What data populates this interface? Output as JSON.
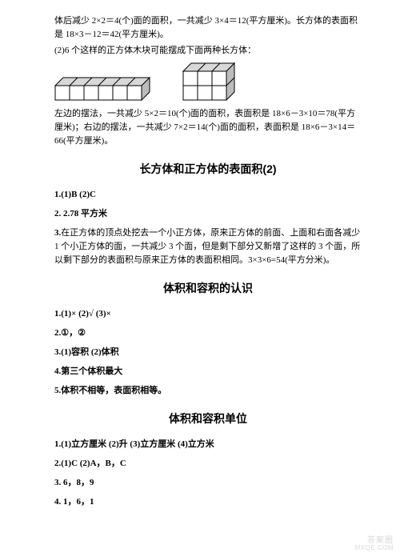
{
  "intro": {
    "p1": "体后减少 2×2＝4(个)面的面积，一共减少 3×4＝12(平方厘米)。长方体的表面积是 18×3－12＝42(平方厘米)。",
    "p2": "(2)6 个这样的正方体木块可能摆成下面两种长方体：",
    "p3": "左边的摆法，一共减少 5×2＝10(个)面的面积，表面积是 18×6－3×10＝78(平方厘米)；右边的摆法，一共减少 7×2＝14(个)面的面积，表面积是 18×6－3×14＝66(平方厘米)。"
  },
  "section1": {
    "title": "长方体和正方体的表面积(2)",
    "q1": "1.(1)B   (2)C",
    "q2": "2. 2.78 平方米",
    "q3": "3.在正方体的顶点处挖去一个小正方体，原来正方体的前面、上面和右面各减少1 个小正方体的面，一共减少 3 个面，但是剩下部分又新增了这样的 3 个面，所以剩下部分的表面积与原来正方体的表面积相同。3×3×6=54(平方分米)。"
  },
  "section2": {
    "title": "体积和容积的认识",
    "q1": "1.(1)×   (2)√   (3)×",
    "q2": "2.①，②",
    "q3": "3.(1)容积   (2)体积",
    "q4": "4.第三个体积最大",
    "q5": "5.体积不相等，表面积相等。"
  },
  "section3": {
    "title": "体积和容积单位",
    "q1": "1.(1)立方厘米   (2)升   (3)立方厘米   (4)立方米",
    "q2": "2.(1)C   (2)A，B，C",
    "q3": "3. 6，8，9",
    "q4": "4. 1，6，1"
  },
  "watermark": {
    "l1": "答案圈",
    "l2": "MXQE.COM"
  },
  "figures": {
    "fig1": {
      "cols": 6,
      "rows": 1,
      "cell": 18,
      "depth": 10,
      "stroke": "#000000",
      "fill_top": "#d8d8d8",
      "fill_side": "#bcbcbc",
      "fill_front": "#ffffff"
    },
    "fig2": {
      "cols": 3,
      "rows": 2,
      "cell": 18,
      "depth": 10,
      "stroke": "#000000",
      "fill_top": "#d8d8d8",
      "fill_side": "#bcbcbc",
      "fill_front": "#ffffff"
    }
  }
}
